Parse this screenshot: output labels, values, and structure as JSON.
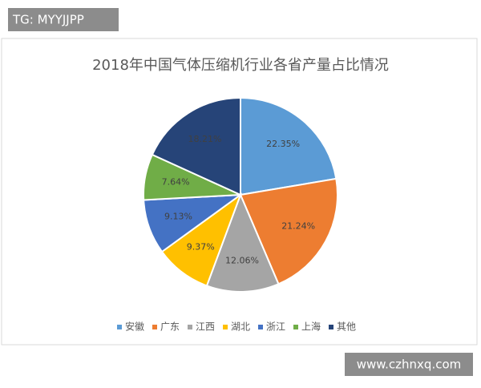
{
  "chart_data": {
    "type": "pie",
    "title": "2018年中国气体压缩机行业各省产量占比情况",
    "categories": [
      "安徽",
      "广东",
      "江西",
      "湖北",
      "浙江",
      "上海",
      "其他"
    ],
    "values": [
      22.35,
      21.24,
      12.06,
      9.37,
      9.13,
      7.64,
      18.21
    ],
    "value_labels": [
      "22.35%",
      "21.24%",
      "12.06%",
      "9.37%",
      "9.13%",
      "7.64%",
      "18.21%"
    ],
    "colors": [
      "#5b9bd5",
      "#ed7d31",
      "#a5a5a5",
      "#ffc000",
      "#4472c4",
      "#70ad47",
      "#264478"
    ],
    "legend": "bottom"
  },
  "watermarks": {
    "top_left": "TG: MYYJJPP",
    "bottom_right": "www.czhnxq.com"
  }
}
